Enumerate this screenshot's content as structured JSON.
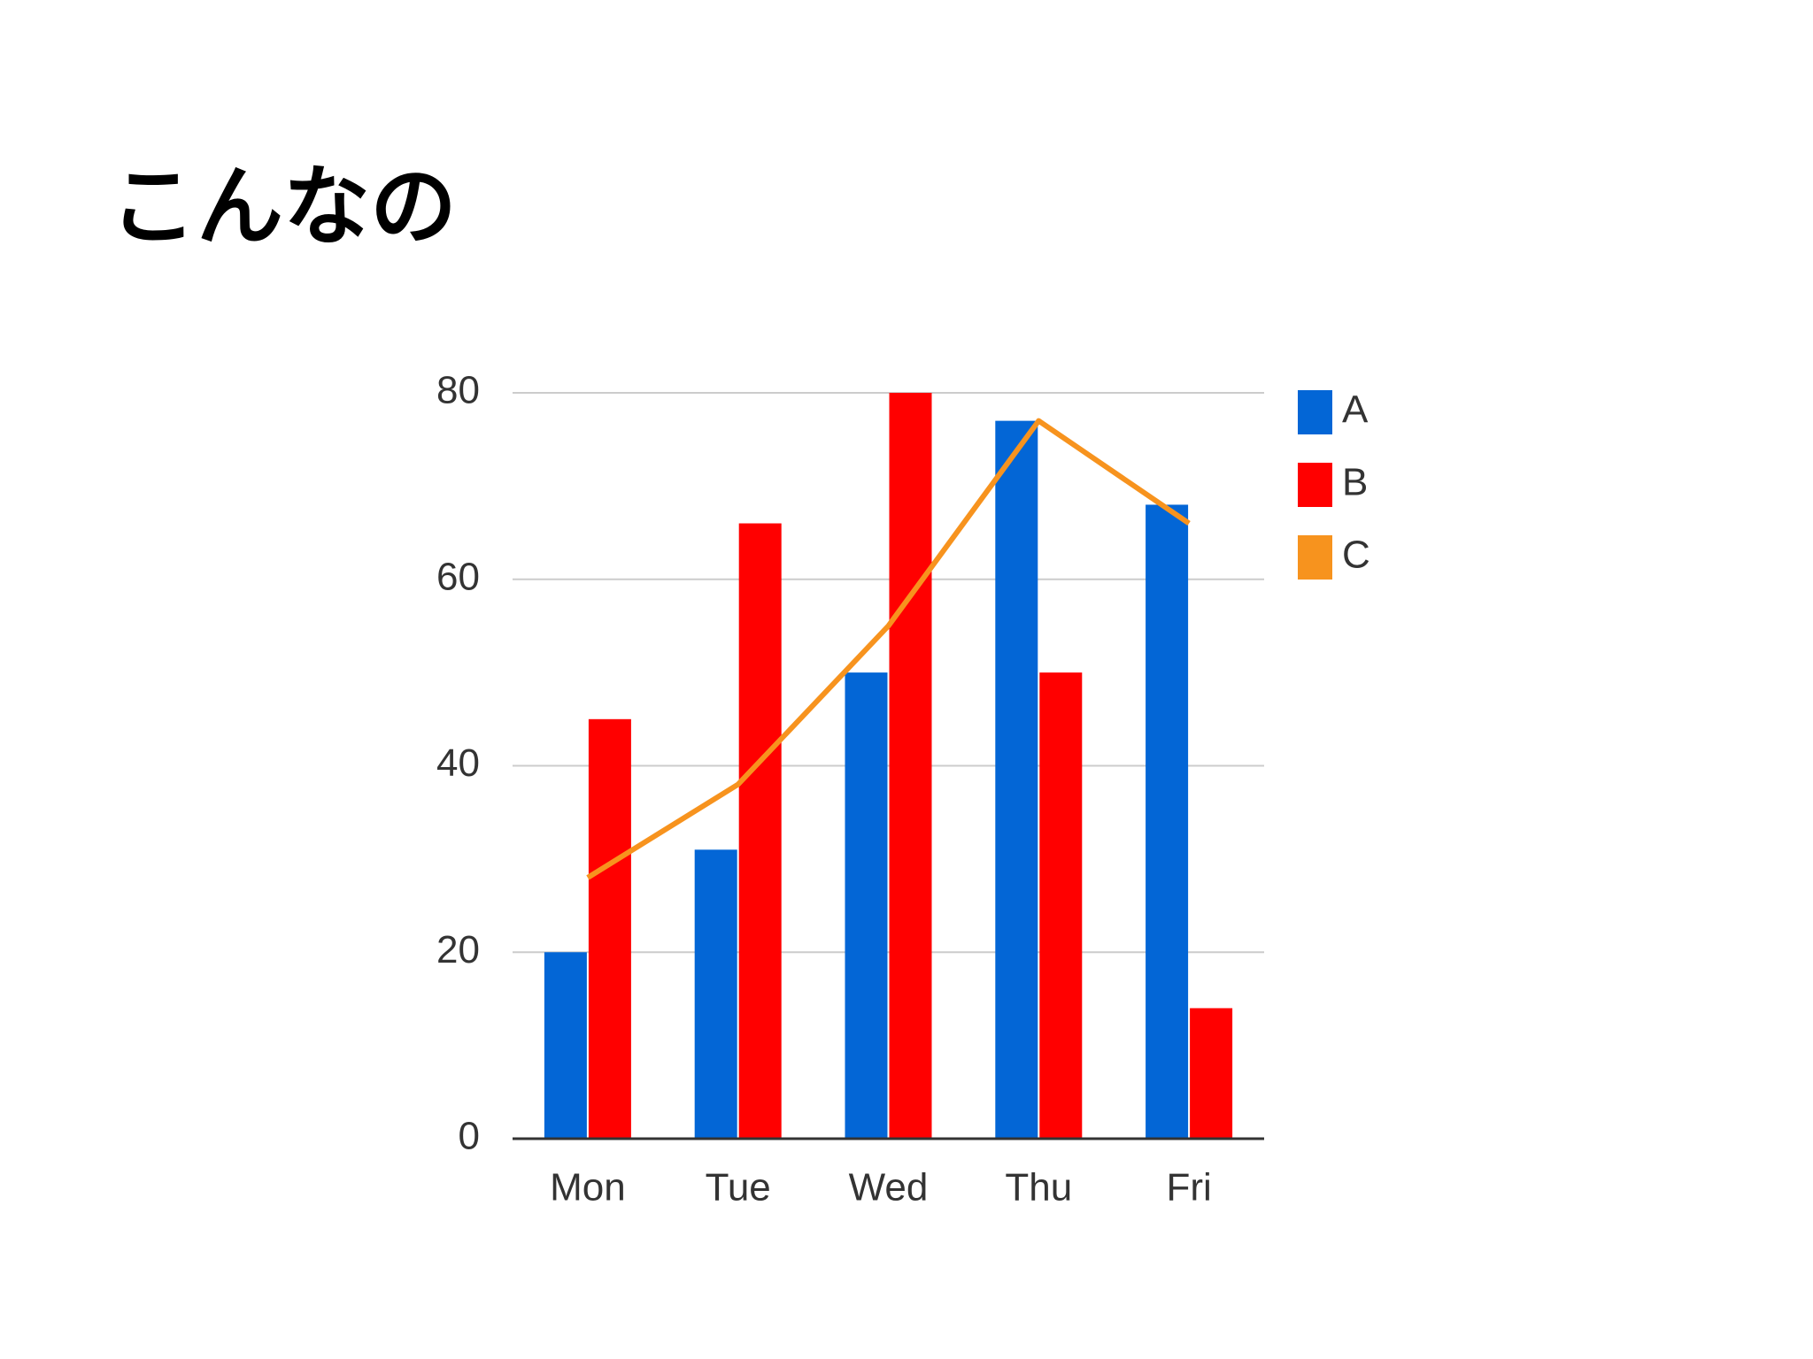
{
  "title": "こんなの",
  "chart_data": {
    "type": "bar",
    "categories": [
      "Mon",
      "Tue",
      "Wed",
      "Thu",
      "Fri"
    ],
    "series": [
      {
        "name": "A",
        "color": "#0366d6",
        "values": [
          20,
          31,
          50,
          77,
          68
        ]
      },
      {
        "name": "B",
        "color": "#ff0000",
        "values": [
          45,
          66,
          80,
          50,
          14
        ]
      },
      {
        "name": "C",
        "color": "#f7931e",
        "type": "line",
        "values": [
          28,
          38,
          55,
          77,
          66
        ]
      }
    ],
    "ylim": [
      0,
      80
    ],
    "yticks": [
      0,
      20,
      40,
      60,
      80
    ],
    "grid": true,
    "legend": "right"
  }
}
